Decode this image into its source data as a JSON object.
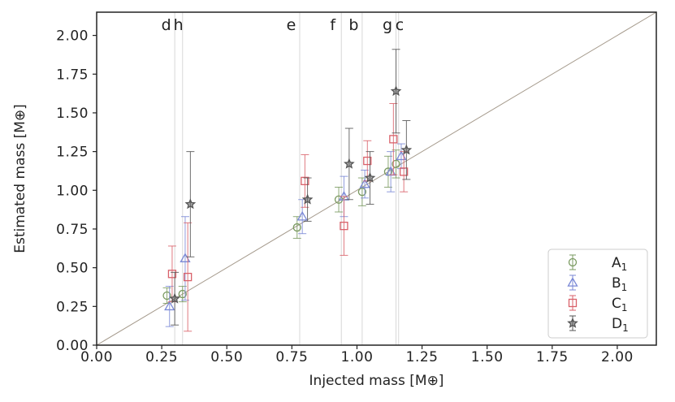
{
  "chart_data": {
    "type": "scatter",
    "xlabel": "Injected mass [M⊕]",
    "ylabel": "Estimated mass [M⊕]",
    "xlim": [
      0.0,
      2.15
    ],
    "ylim": [
      0.0,
      2.15
    ],
    "x_ticks": [
      "0.00",
      "0.25",
      "0.50",
      "0.75",
      "1.00",
      "1.25",
      "1.50",
      "1.75",
      "2.00"
    ],
    "y_ticks": [
      "0.00",
      "0.25",
      "0.50",
      "0.75",
      "1.00",
      "1.25",
      "1.50",
      "1.75",
      "2.00"
    ],
    "grid": false,
    "identity_line": true,
    "legend_position": "bottom-right",
    "planets": [
      {
        "label": "d",
        "mass": 0.3
      },
      {
        "label": "h",
        "mass": 0.33
      },
      {
        "label": "e",
        "mass": 0.78
      },
      {
        "label": "f",
        "mass": 0.94
      },
      {
        "label": "b",
        "mass": 1.02
      },
      {
        "label": "g",
        "mass": 1.15
      },
      {
        "label": "c",
        "mass": 1.16
      }
    ],
    "series": [
      {
        "name": "A",
        "subscript": "1",
        "color": "#7a9a60",
        "marker": "circle",
        "points": [
          {
            "x": 0.27,
            "y": 0.32,
            "err": 0.05
          },
          {
            "x": 0.33,
            "y": 0.33,
            "err": 0.05
          },
          {
            "x": 0.77,
            "y": 0.76,
            "err": 0.07
          },
          {
            "x": 0.93,
            "y": 0.94,
            "err": 0.08
          },
          {
            "x": 1.02,
            "y": 0.99,
            "err": 0.09
          },
          {
            "x": 1.12,
            "y": 1.12,
            "err": 0.1
          },
          {
            "x": 1.15,
            "y": 1.17,
            "err": 0.09
          }
        ]
      },
      {
        "name": "B",
        "subscript": "1",
        "color": "#7b89d6",
        "marker": "triangle",
        "points": [
          {
            "x": 0.28,
            "y": 0.25,
            "err": 0.13
          },
          {
            "x": 0.34,
            "y": 0.56,
            "err": 0.27
          },
          {
            "x": 0.79,
            "y": 0.83,
            "err": 0.11
          },
          {
            "x": 0.95,
            "y": 0.96,
            "err": 0.13
          },
          {
            "x": 1.03,
            "y": 1.04,
            "err": 0.09
          },
          {
            "x": 1.13,
            "y": 1.12,
            "err": 0.13
          },
          {
            "x": 1.17,
            "y": 1.22,
            "err": 0.08
          }
        ]
      },
      {
        "name": "C",
        "subscript": "1",
        "color": "#d9616a",
        "marker": "square",
        "points": [
          {
            "x": 0.29,
            "y": 0.46,
            "err": 0.18
          },
          {
            "x": 0.35,
            "y": 0.44,
            "err": 0.35
          },
          {
            "x": 0.8,
            "y": 1.06,
            "err": 0.17
          },
          {
            "x": 0.95,
            "y": 0.77,
            "err": 0.19
          },
          {
            "x": 1.04,
            "y": 1.19,
            "err": 0.13
          },
          {
            "x": 1.14,
            "y": 1.33,
            "err": 0.23
          },
          {
            "x": 1.18,
            "y": 1.12,
            "err": 0.13
          }
        ]
      },
      {
        "name": "D",
        "subscript": "1",
        "color": "#555555",
        "marker": "star",
        "points": [
          {
            "x": 0.3,
            "y": 0.3,
            "err": 0.17
          },
          {
            "x": 0.36,
            "y": 0.91,
            "err": 0.34
          },
          {
            "x": 0.81,
            "y": 0.94,
            "err": 0.14
          },
          {
            "x": 0.97,
            "y": 1.17,
            "err": 0.23
          },
          {
            "x": 1.05,
            "y": 1.08,
            "err": 0.17
          },
          {
            "x": 1.15,
            "y": 1.64,
            "err": 0.27
          },
          {
            "x": 1.19,
            "y": 1.26,
            "err": 0.19
          }
        ]
      }
    ]
  }
}
